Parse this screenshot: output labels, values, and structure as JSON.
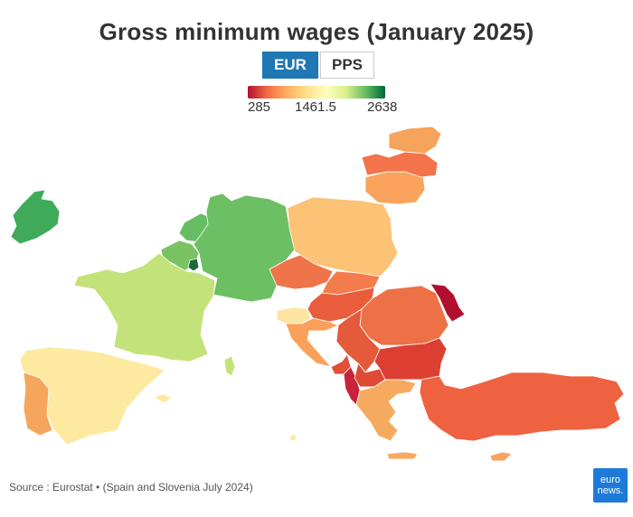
{
  "title": "Gross minimum wages (January 2025)",
  "toggle": {
    "options": [
      "EUR",
      "PPS"
    ],
    "selected": "EUR"
  },
  "legend": {
    "min_label": "285",
    "mid_label": "1461.5",
    "max_label": "2638",
    "min": 285,
    "mid": 1461.5,
    "max": 2638,
    "colors": [
      "#b10f2e",
      "#f46d43",
      "#fdae61",
      "#fee08b",
      "#ffffbf",
      "#d9ef8b",
      "#66bd63",
      "#006837"
    ]
  },
  "source": "Source : Eurostat • (Spain and Slovenia July 2024)",
  "logo": {
    "line1": "euro",
    "line2": "news."
  },
  "countries": [
    {
      "name": "Ireland",
      "color": "#3eaa5a"
    },
    {
      "name": "Luxembourg",
      "color": "#1a6b3a"
    },
    {
      "name": "Belgium",
      "color": "#7ac262"
    },
    {
      "name": "Netherlands",
      "color": "#66bd63"
    },
    {
      "name": "Germany",
      "color": "#6dbf63"
    },
    {
      "name": "France",
      "color": "#c4e27a"
    },
    {
      "name": "Spain",
      "color": "#fee9a0"
    },
    {
      "name": "Portugal",
      "color": "#f5a65c"
    },
    {
      "name": "Slovenia",
      "color": "#fde4a0"
    },
    {
      "name": "Poland",
      "color": "#fcc276"
    },
    {
      "name": "Lithuania",
      "color": "#f9a35c"
    },
    {
      "name": "Latvia",
      "color": "#f3734a"
    },
    {
      "name": "Estonia",
      "color": "#f6a35b"
    },
    {
      "name": "Czechia",
      "color": "#f0744a"
    },
    {
      "name": "Slovakia",
      "color": "#f47c4c"
    },
    {
      "name": "Hungary",
      "color": "#ea5d3c"
    },
    {
      "name": "Croatia",
      "color": "#f9a15a"
    },
    {
      "name": "Romania",
      "color": "#ee7046"
    },
    {
      "name": "Moldova",
      "color": "#b10f2e"
    },
    {
      "name": "Serbia",
      "color": "#e45a3a"
    },
    {
      "name": "Montenegro",
      "color": "#e24e36"
    },
    {
      "name": "North Macedonia",
      "color": "#de4a34"
    },
    {
      "name": "Albania",
      "color": "#c8233a"
    },
    {
      "name": "Bulgaria",
      "color": "#dc3f32"
    },
    {
      "name": "Greece",
      "color": "#f6aa60"
    },
    {
      "name": "Turkey",
      "color": "#ef6240"
    },
    {
      "name": "Cyprus",
      "color": "#f5a560"
    },
    {
      "name": "Malta",
      "color": "#fee9a0"
    }
  ]
}
